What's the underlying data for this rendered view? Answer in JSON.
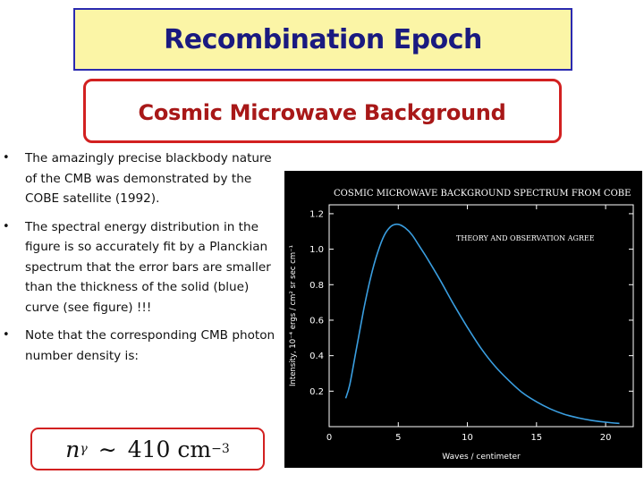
{
  "slide": {
    "title": "Recombination Epoch",
    "subtitle": "Cosmic Microwave Background",
    "bullets": [
      "The amazingly precise blackbody nature of the CMB was demonstrated by the COBE satellite (1992).",
      "The spectral energy distribution in the figure is so accurately fit by a Planckian spectrum that the error bars are smaller than the thickness of the solid (blue) curve (see figure) !!!",
      "Note that the corresponding CMB photon number density is:"
    ],
    "formula": {
      "symbol": "n",
      "subscript": "γ",
      "relation": "∼",
      "value": "410",
      "unit": "cm",
      "exponent": "−3"
    }
  },
  "chart_data": {
    "type": "line",
    "title": "COSMIC MICROWAVE BACKGROUND SPECTRUM FROM COBE",
    "annotation": "THEORY AND OBSERVATION AGREE",
    "xlabel": "Waves / centimeter",
    "ylabel": "Intensity, 10⁻⁴ ergs / cm² sr sec cm⁻¹",
    "xlim": [
      0,
      22
    ],
    "ylim": [
      0,
      1.25
    ],
    "xticks": [
      0,
      5,
      10,
      15,
      20
    ],
    "yticks": [
      0.2,
      0.4,
      0.6,
      0.8,
      1.0,
      1.2
    ],
    "ytick_labels": [
      "0.2",
      "0.4",
      "0.6",
      "0.8",
      "1.0",
      "1.2"
    ],
    "series": [
      {
        "color": "#3a9ee0",
        "x": [
          1.2,
          1.5,
          2,
          2.5,
          3,
          3.5,
          4,
          4.5,
          5,
          5.5,
          6,
          6.5,
          7,
          8,
          9,
          10,
          11,
          12,
          13,
          14,
          15,
          16,
          17,
          18,
          19,
          20,
          21
        ],
        "y": [
          0.16,
          0.24,
          0.45,
          0.66,
          0.84,
          0.98,
          1.08,
          1.13,
          1.14,
          1.12,
          1.08,
          1.02,
          0.96,
          0.83,
          0.69,
          0.56,
          0.44,
          0.34,
          0.26,
          0.19,
          0.14,
          0.1,
          0.07,
          0.05,
          0.035,
          0.025,
          0.018
        ]
      }
    ]
  },
  "colors": {
    "title_bg": "#fbf5a6",
    "title_border": "#2a2ab0",
    "title_text": "#1a1a80",
    "subtitle_border": "#d22020",
    "subtitle_text": "#a81818",
    "chart_bg": "#000000",
    "curve": "#3a9ee0"
  }
}
